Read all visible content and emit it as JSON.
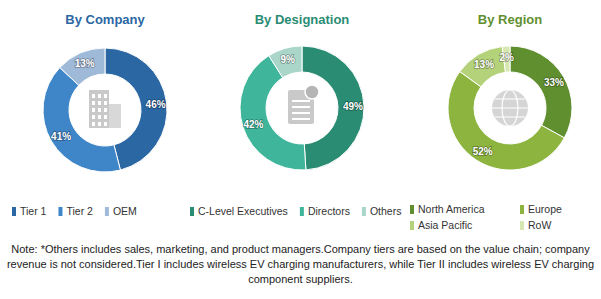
{
  "chart_data": [
    {
      "type": "pie",
      "title": "By Company",
      "categories": [
        "Tier 1",
        "Tier 2",
        "OEM"
      ],
      "values": [
        46,
        41,
        13
      ],
      "value_labels": [
        "46%",
        "41%",
        "13%"
      ],
      "colors": [
        "#2b67a3",
        "#3f86c8",
        "#9fb9d8"
      ],
      "data_labels": true,
      "legend": "bottom"
    },
    {
      "type": "pie",
      "title": "By Designation",
      "categories": [
        "C-Level Executives",
        "Directors",
        "Others"
      ],
      "values": [
        49,
        42,
        9
      ],
      "value_labels": [
        "49%",
        "42%",
        "9%"
      ],
      "colors": [
        "#2b8c74",
        "#3fb69b",
        "#a9d6c9"
      ],
      "data_labels": true,
      "legend": "bottom"
    },
    {
      "type": "pie",
      "title": "By Region",
      "categories": [
        "North America",
        "Europe",
        "Asia Pacific",
        "RoW"
      ],
      "values": [
        33,
        52,
        13,
        2
      ],
      "value_labels": [
        "33%",
        "52%",
        "13%",
        "2%"
      ],
      "colors": [
        "#5f8f2f",
        "#8db43f",
        "#b4d27a",
        "#d6e7b2"
      ],
      "data_labels": true,
      "legend": "bottom"
    }
  ],
  "note": "Note: *Others includes sales, marketing, and product managers.Company tiers are based on the value chain; company revenue is not considered.Tier I includes wireless EV charging manufacturers, while Tier II includes wireless EV charging component suppliers."
}
